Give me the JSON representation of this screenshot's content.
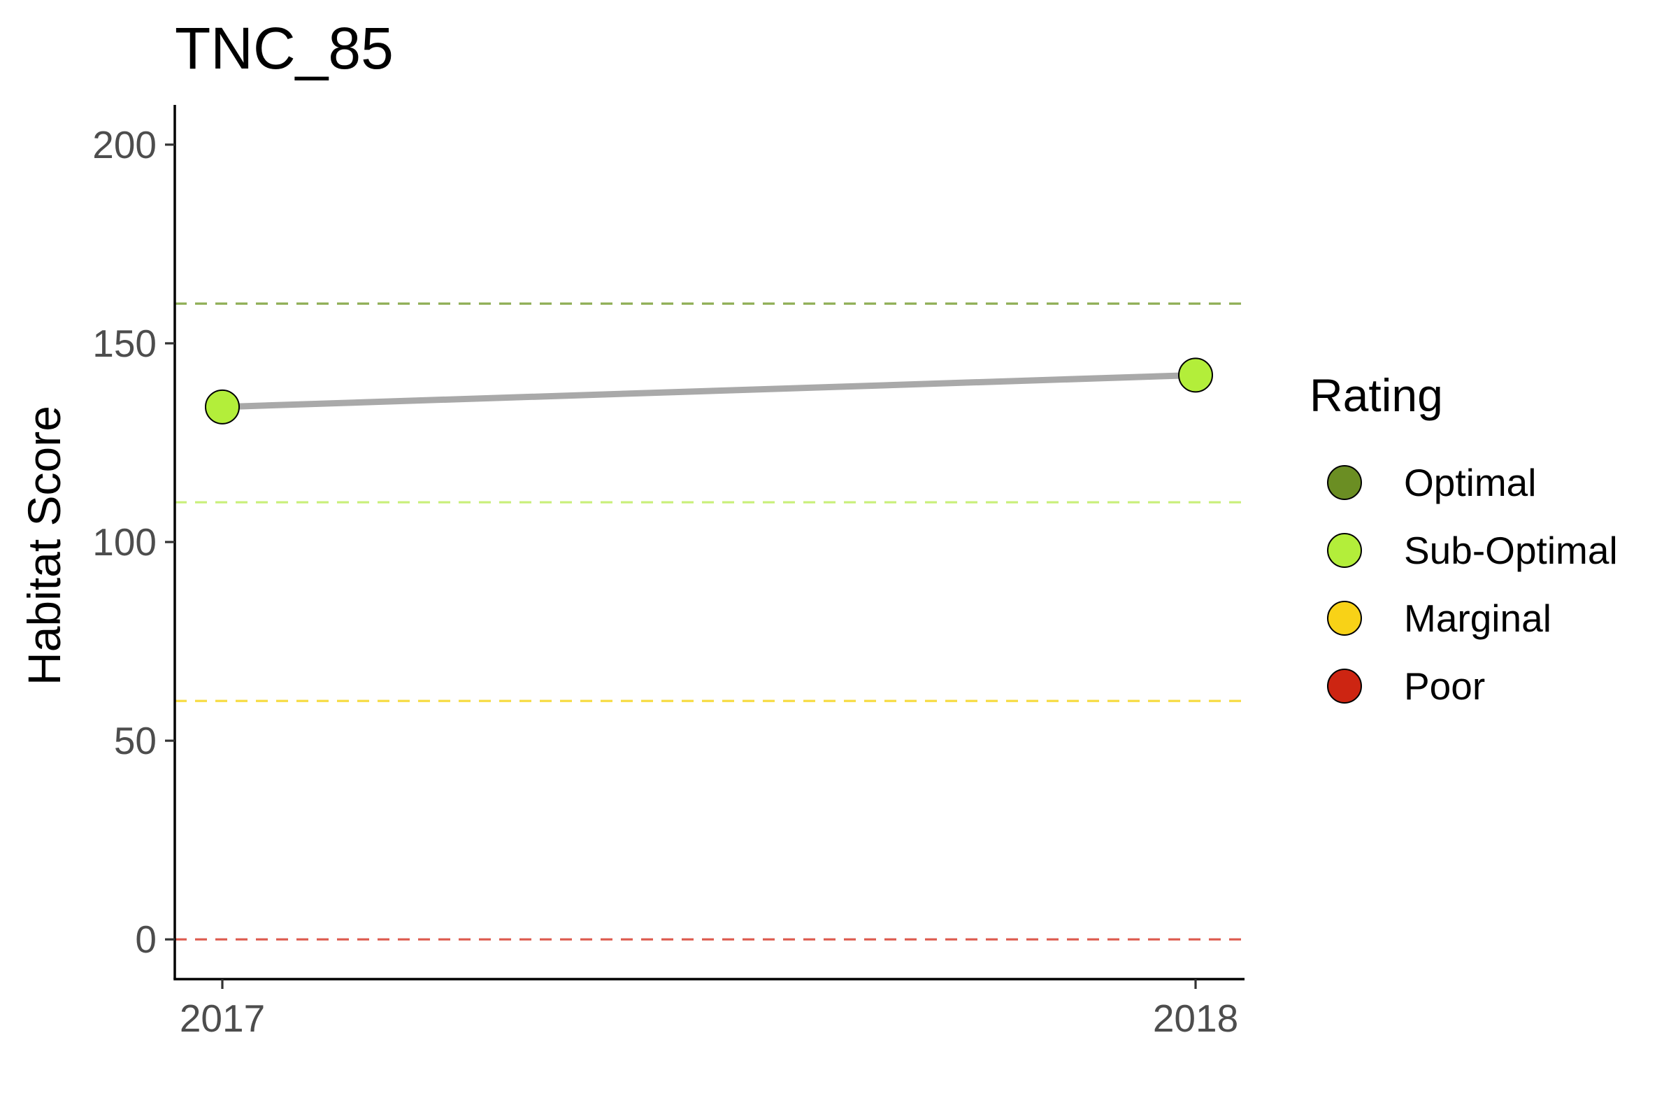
{
  "chart_data": {
    "type": "line",
    "title": "TNC_85",
    "xlabel": "",
    "ylabel": "Habitat Score",
    "x": [
      "2017",
      "2018"
    ],
    "series": [
      {
        "values": [
          134,
          142
        ],
        "ratings": [
          "Sub-Optimal",
          "Sub-Optimal"
        ],
        "line_color": "#a9a9a9"
      }
    ],
    "ylim": [
      -10,
      210
    ],
    "yticks": [
      0,
      50,
      100,
      150,
      200
    ],
    "ytick_labels": [
      "0",
      "50",
      "100",
      "150",
      "200"
    ],
    "xtick_labels": [
      "2017",
      "2018"
    ],
    "thresholds": [
      {
        "value": 160,
        "rating": "Optimal",
        "color": "#8fae55"
      },
      {
        "value": 110,
        "rating": "Sub-Optimal",
        "color": "#c9ef7a"
      },
      {
        "value": 60,
        "rating": "Marginal",
        "color": "#f7dc45"
      },
      {
        "value": 0,
        "rating": "Poor",
        "color": "#dd5a4d"
      }
    ],
    "legend": {
      "title": "Rating",
      "position": "right",
      "items": [
        {
          "label": "Optimal",
          "color": "#6b8e23"
        },
        {
          "label": "Sub-Optimal",
          "color": "#b3ee3a"
        },
        {
          "label": "Marginal",
          "color": "#f8d217"
        },
        {
          "label": "Poor",
          "color": "#cd2512"
        }
      ]
    },
    "grid": false
  }
}
